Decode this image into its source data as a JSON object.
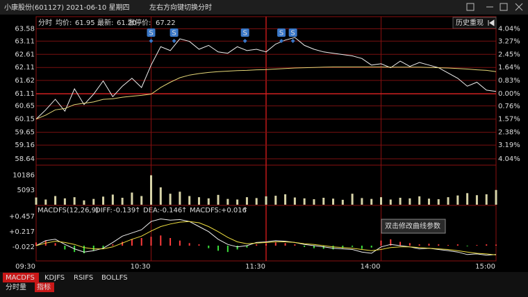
{
  "window": {
    "title": "小康股份(601127) 2021-06-10 星期四",
    "hint": "左右方向键切换分时"
  },
  "header": {
    "mode": "分时",
    "avg_label": "均价:",
    "avg": "61.95",
    "last_label": "最新:",
    "last": "61.20",
    "limit_label": "涨停价:",
    "limit": "67.22",
    "replay": "历史重现"
  },
  "macd_header": {
    "name": "MACDFS(12,26,9)",
    "diff_label": "DIFF:",
    "diff": "-0.139",
    "diff_arrow": "↑",
    "dea_label": "DEA:",
    "dea": "-0.146",
    "dea_arrow": "↑",
    "hist_label": "MACDFS:",
    "hist": "+0.016",
    "hist_arrow": "↑"
  },
  "tooltip": "双击修改曲线参数",
  "tabs": [
    "MACDFS",
    "KDJFS",
    "RSIFS",
    "BOLLFS"
  ],
  "subtabs": [
    "分时量",
    "指标"
  ],
  "chart_data": [
    {
      "type": "line",
      "x": [
        0,
        5,
        10,
        15,
        20,
        25,
        30,
        35,
        40,
        45,
        50,
        55,
        60,
        65,
        70,
        75,
        80,
        85,
        90,
        95,
        100,
        105,
        110,
        115,
        120,
        125,
        130,
        135,
        140,
        145,
        150,
        155,
        160,
        165,
        170,
        175,
        180,
        185,
        190,
        195,
        200,
        205,
        210,
        215,
        220,
        225,
        230,
        235,
        240
      ],
      "xlim": [
        0,
        240
      ],
      "xticks": [
        {
          "value": 0,
          "label": "09:30"
        },
        {
          "value": 60,
          "label": "10:30"
        },
        {
          "value": 120,
          "label": "11:30"
        },
        {
          "value": 180,
          "label": "14:00"
        },
        {
          "value": 240,
          "label": "15:00"
        }
      ],
      "ylim": [
        58.4,
        63.75
      ],
      "yticks": [
        63.58,
        63.11,
        62.61,
        62.11,
        61.62,
        61.11,
        60.65,
        60.15,
        59.65,
        59.16,
        58.64
      ],
      "y2lim": [
        -4.43,
        4.32
      ],
      "y2ticks": [
        {
          "value": 4.04,
          "label": "4.04%"
        },
        {
          "value": 3.27,
          "label": "3.27%"
        },
        {
          "value": 2.45,
          "label": "2.45%"
        },
        {
          "value": 1.64,
          "label": "1.64%"
        },
        {
          "value": 0.83,
          "label": "0.83%"
        },
        {
          "value": 0,
          "label": "0.00%"
        },
        {
          "value": -0.76,
          "label": "0.76%"
        },
        {
          "value": -1.57,
          "label": "1.57%"
        },
        {
          "value": -2.38,
          "label": "2.38%"
        },
        {
          "value": -3.19,
          "label": "3.19%"
        },
        {
          "value": -4.04,
          "label": "4.04%"
        }
      ],
      "grid": true,
      "up_color": "#ff3b3b",
      "down_color": "#3ade3a",
      "series": [
        {
          "color": "#f0f0f0",
          "values": [
            60.15,
            60.5,
            60.9,
            60.45,
            61.3,
            60.7,
            61.1,
            61.6,
            61.0,
            61.4,
            61.7,
            61.35,
            62.2,
            62.9,
            62.75,
            63.2,
            63.1,
            62.8,
            62.95,
            62.7,
            62.65,
            62.9,
            62.75,
            62.8,
            62.7,
            63.0,
            63.15,
            63.25,
            62.95,
            62.8,
            62.7,
            62.65,
            62.6,
            62.55,
            62.45,
            62.2,
            62.25,
            62.1,
            62.35,
            62.15,
            62.3,
            62.2,
            62.1,
            61.9,
            61.7,
            61.4,
            61.55,
            61.25,
            61.2
          ]
        },
        {
          "color": "#e6d878",
          "values": [
            60.15,
            60.3,
            60.5,
            60.55,
            60.7,
            60.75,
            60.8,
            60.9,
            60.92,
            60.98,
            61.02,
            61.05,
            61.1,
            61.35,
            61.55,
            61.72,
            61.82,
            61.88,
            61.92,
            61.95,
            61.97,
            61.99,
            62.0,
            62.02,
            62.03,
            62.05,
            62.07,
            62.09,
            62.1,
            62.11,
            62.12,
            62.13,
            62.13,
            62.13,
            62.13,
            62.13,
            62.13,
            62.12,
            62.12,
            62.12,
            62.12,
            62.11,
            62.1,
            62.09,
            62.07,
            62.05,
            62.02,
            62.0,
            61.95
          ]
        }
      ],
      "annotations": [
        {
          "text": "S",
          "x": 60
        },
        {
          "text": "S",
          "x": 72
        },
        {
          "text": "S",
          "x": 109
        },
        {
          "text": "S",
          "x": 128
        },
        {
          "text": "S",
          "x": 134
        }
      ]
    },
    {
      "type": "bar",
      "color": "#d8d4a8",
      "tick_color": "#4fc3f7",
      "ylim": [
        0,
        13200
      ],
      "yticks": [
        5093,
        10186
      ],
      "values": [
        2500,
        1800,
        3000,
        2200,
        2600,
        1500,
        2000,
        2800,
        3500,
        2400,
        4200,
        3000,
        10186,
        6000,
        3800,
        4500,
        3000,
        2600,
        2200,
        3400,
        2000,
        1800,
        2600,
        2300,
        2900,
        3100,
        3600,
        2500,
        2200,
        1900,
        2400,
        2100,
        1700,
        3800,
        2300,
        2000,
        2600,
        1800,
        2400,
        2200,
        2900,
        2100,
        1900,
        2600,
        3200,
        4000,
        3300,
        3600,
        5093
      ]
    },
    {
      "type": "macd",
      "ylim": [
        -0.24,
        0.48
      ],
      "yticks": [
        {
          "value": 0.457,
          "label": "+0.457"
        },
        {
          "value": 0.217,
          "label": "+0.217"
        },
        {
          "value": -0.022,
          "label": "-0.022"
        }
      ],
      "up_color": "#ff3b3b",
      "down_color": "#3ade3a",
      "values": [
        0.05,
        0.08,
        0.04,
        -0.06,
        -0.1,
        -0.12,
        -0.08,
        -0.05,
        0.02,
        0.06,
        0.1,
        0.12,
        0.14,
        0.16,
        0.12,
        0.08,
        0.04,
        0.02,
        -0.04,
        -0.08,
        -0.1,
        -0.06,
        -0.03,
        0.02,
        0.03,
        0.05,
        0.04,
        0.02,
        -0.02,
        -0.04,
        -0.05,
        -0.06,
        -0.04,
        -0.02,
        -0.05,
        -0.03,
        0.08,
        0.1,
        0.06,
        0.04,
        0.02,
        0.03,
        0.02,
        0.01,
        0.02,
        -0.01,
        0.01,
        0.02,
        0.016
      ],
      "series": [
        {
          "color": "#f0f0f0",
          "values": [
            0.0,
            0.08,
            0.1,
            0.02,
            -0.05,
            -0.1,
            -0.08,
            -0.04,
            0.05,
            0.15,
            0.2,
            0.25,
            0.38,
            0.42,
            0.4,
            0.41,
            0.38,
            0.3,
            0.22,
            0.1,
            0.02,
            -0.02,
            0.0,
            0.05,
            0.06,
            0.08,
            0.07,
            0.05,
            0.02,
            0.0,
            -0.02,
            -0.04,
            -0.05,
            -0.06,
            -0.1,
            -0.12,
            -0.02,
            0.02,
            0.0,
            -0.02,
            -0.05,
            -0.04,
            -0.06,
            -0.08,
            -0.1,
            -0.14,
            -0.13,
            -0.15,
            -0.139
          ]
        },
        {
          "color": "#f0e040",
          "values": [
            0.0,
            0.04,
            0.07,
            0.05,
            0.02,
            -0.03,
            -0.05,
            -0.05,
            -0.02,
            0.04,
            0.1,
            0.15,
            0.23,
            0.3,
            0.34,
            0.37,
            0.38,
            0.36,
            0.3,
            0.22,
            0.13,
            0.06,
            0.03,
            0.04,
            0.05,
            0.06,
            0.06,
            0.05,
            0.03,
            0.02,
            0.0,
            -0.02,
            -0.03,
            -0.04,
            -0.06,
            -0.08,
            -0.06,
            -0.03,
            -0.02,
            -0.02,
            -0.03,
            -0.04,
            -0.05,
            -0.06,
            -0.08,
            -0.1,
            -0.12,
            -0.13,
            -0.146
          ]
        }
      ]
    }
  ]
}
